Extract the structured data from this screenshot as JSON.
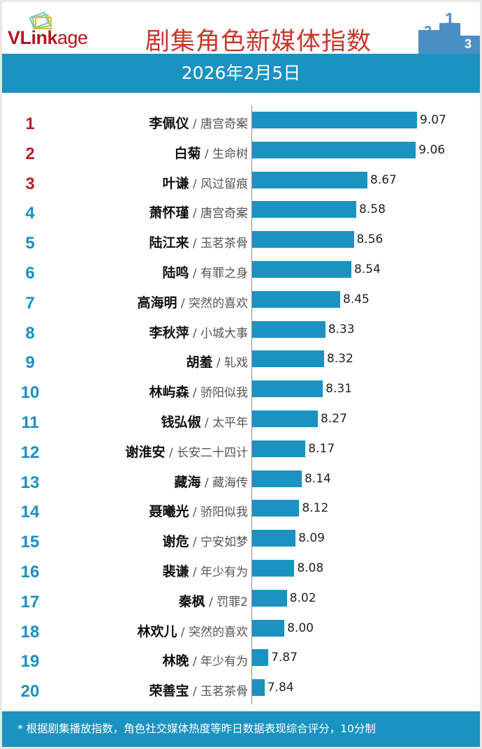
{
  "header": {
    "logo": "VLinkage",
    "logo_main": "VLink",
    "logo_tail": "age",
    "title": "剧集角色新媒体指数",
    "date": "2026年2月5日",
    "podium_labels": [
      "2",
      "1",
      "3"
    ]
  },
  "colors": {
    "bar": "#1b93c1",
    "top3_rank": "#b8202a",
    "rank": "#1b8fbf",
    "title": "#c8372d"
  },
  "chart_data": {
    "type": "bar",
    "orientation": "horizontal",
    "xlim": [
      7.74,
      9.07
    ],
    "rows": [
      {
        "rank": "1",
        "name": "李佩仪",
        "show": "唐宫奇案",
        "value": 9.07
      },
      {
        "rank": "2",
        "name": "白菊",
        "show": "生命树",
        "value": 9.06
      },
      {
        "rank": "3",
        "name": "叶谦",
        "show": "风过留痕",
        "value": 8.67
      },
      {
        "rank": "4",
        "name": "萧怀瑾",
        "show": "唐宫奇案",
        "value": 8.58
      },
      {
        "rank": "5",
        "name": "陆江来",
        "show": "玉茗茶骨",
        "value": 8.56
      },
      {
        "rank": "6",
        "name": "陆鸣",
        "show": "有罪之身",
        "value": 8.54
      },
      {
        "rank": "7",
        "name": "高海明",
        "show": "突然的喜欢",
        "value": 8.45
      },
      {
        "rank": "8",
        "name": "李秋萍",
        "show": "小城大事",
        "value": 8.33
      },
      {
        "rank": "9",
        "name": "胡羞",
        "show": "轧戏",
        "value": 8.32
      },
      {
        "rank": "10",
        "name": "林屿森",
        "show": "骄阳似我",
        "value": 8.31
      },
      {
        "rank": "11",
        "name": "钱弘俶",
        "show": "太平年",
        "value": 8.27
      },
      {
        "rank": "12",
        "name": "谢淮安",
        "show": "长安二十四计",
        "value": 8.17
      },
      {
        "rank": "13",
        "name": "藏海",
        "show": "藏海传",
        "value": 8.14
      },
      {
        "rank": "14",
        "name": "聂曦光",
        "show": "骄阳似我",
        "value": 8.12
      },
      {
        "rank": "15",
        "name": "谢危",
        "show": "宁安如梦",
        "value": 8.09
      },
      {
        "rank": "16",
        "name": "裴谦",
        "show": "年少有为",
        "value": 8.08
      },
      {
        "rank": "17",
        "name": "秦枫",
        "show": "罚罪2",
        "value": 8.02
      },
      {
        "rank": "18",
        "name": "林欢儿",
        "show": "突然的喜欢",
        "value": 8.0
      },
      {
        "rank": "19",
        "name": "林晚",
        "show": "年少有为",
        "value": 7.87
      },
      {
        "rank": "20",
        "name": "荣善宝",
        "show": "玉茗茶骨",
        "value": 7.84
      }
    ]
  },
  "footer": {
    "note": "* 根据剧集播放指数，角色社交媒体热度等昨日数据表现综合评分，10分制"
  }
}
